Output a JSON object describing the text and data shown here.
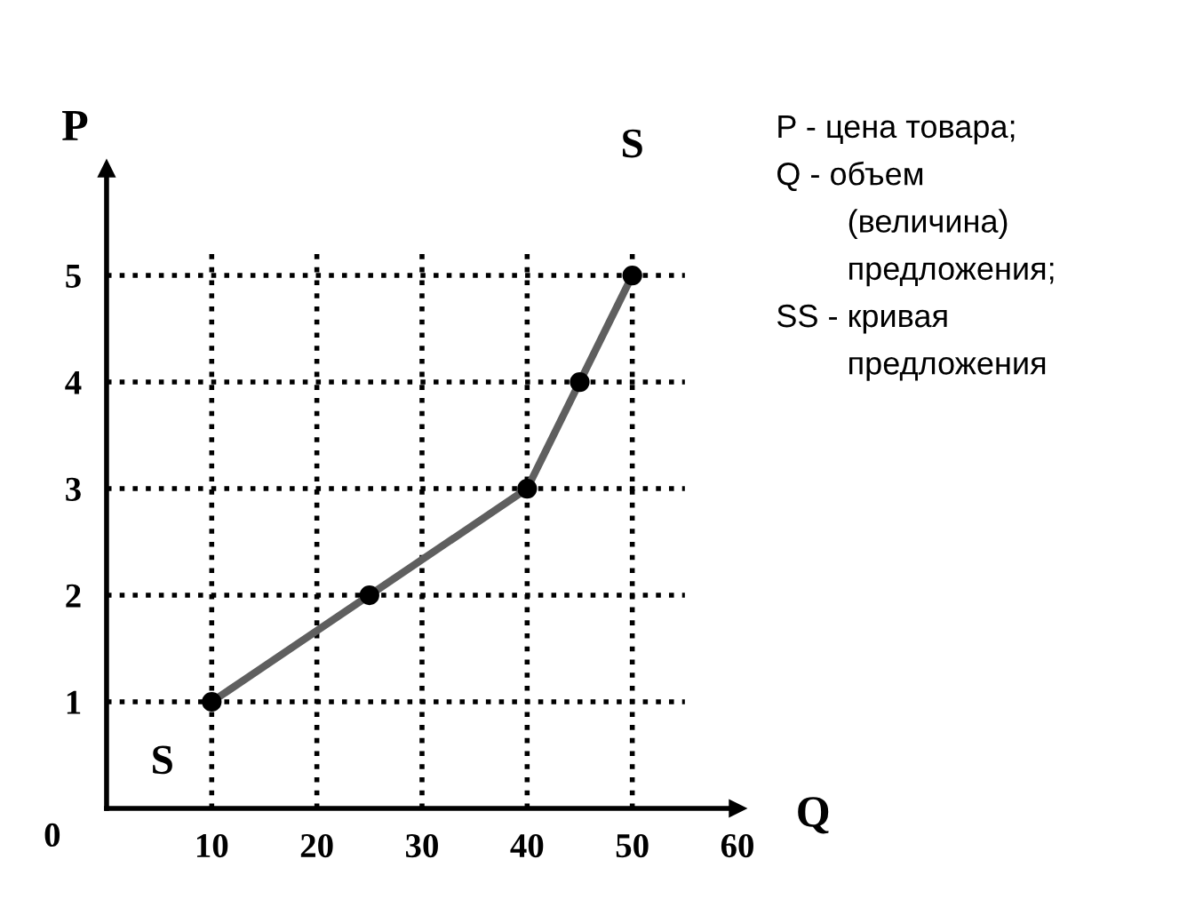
{
  "chart_data": {
    "type": "line",
    "xlabel": "Q",
    "ylabel": "P",
    "x": [
      10,
      25,
      40,
      45,
      50
    ],
    "series": [
      {
        "color": "#5f5f5f",
        "values": [
          1,
          2,
          3,
          4,
          5
        ]
      }
    ],
    "marker": "circle",
    "line_style": "solid",
    "grid": true,
    "xlim": [
      0,
      60
    ],
    "ylim": [
      0,
      6
    ],
    "xticks": [
      10,
      20,
      30,
      40,
      50,
      60
    ],
    "yticks": [
      1,
      2,
      3,
      4,
      5
    ],
    "annotations": [
      "S",
      "S",
      "0",
      "P - цена товара;\nQ - объем\n        (величина)\n        предложения;\nSS - кривая\n        предложения"
    ]
  }
}
